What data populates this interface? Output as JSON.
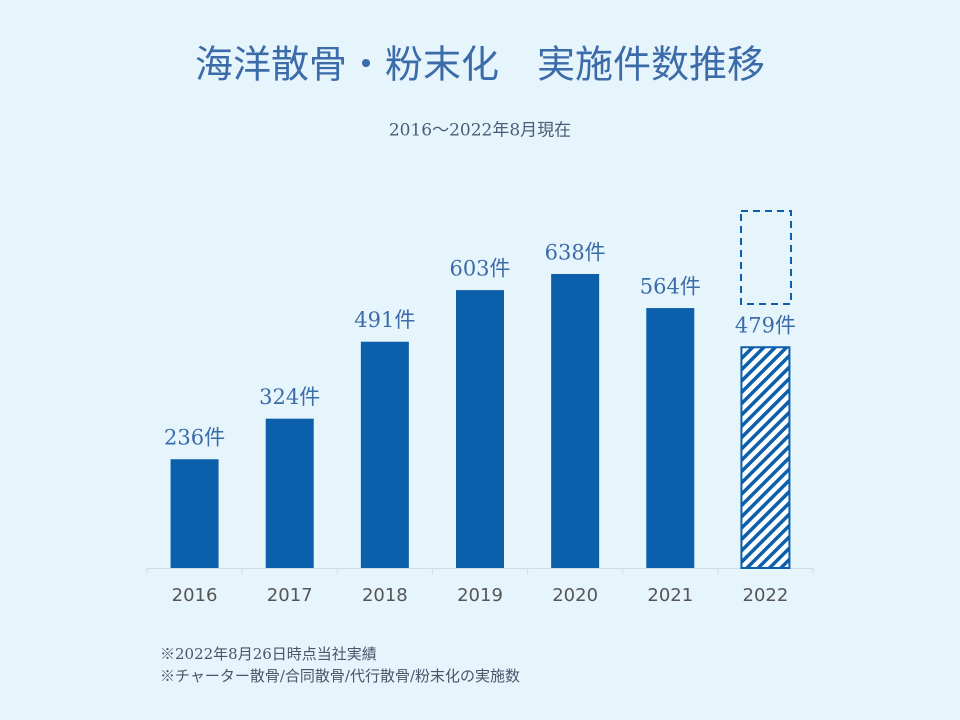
{
  "chart_data": {
    "type": "bar",
    "title": "海洋散骨・粉末化　実施件数推移",
    "subtitle": "2016～2022年8月現在",
    "categories": [
      "2016",
      "2017",
      "2018",
      "2019",
      "2020",
      "2021",
      "2022"
    ],
    "values": [
      236,
      324,
      491,
      603,
      638,
      564,
      479
    ],
    "value_labels": [
      "236件",
      "324件",
      "491件",
      "603件",
      "638件",
      "564件",
      "479件"
    ],
    "hatched": [
      false,
      false,
      false,
      false,
      false,
      false,
      true
    ],
    "color": "#0b5fab",
    "ylim": [
      0,
      700
    ],
    "notes": [
      "※2022年8月26日時点当社実績",
      "※チャーター散骨/合同散骨/代行散骨/粉末化の実施数"
    ]
  }
}
